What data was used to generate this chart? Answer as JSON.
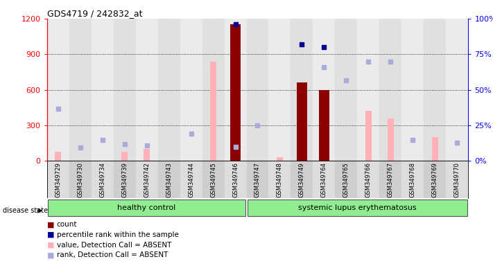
{
  "title": "GDS4719 / 242832_at",
  "samples": [
    "GSM349729",
    "GSM349730",
    "GSM349734",
    "GSM349739",
    "GSM349742",
    "GSM349743",
    "GSM349744",
    "GSM349745",
    "GSM349746",
    "GSM349747",
    "GSM349748",
    "GSM349749",
    "GSM349764",
    "GSM349765",
    "GSM349766",
    "GSM349767",
    "GSM349768",
    "GSM349769",
    "GSM349770"
  ],
  "count_values": [
    null,
    null,
    null,
    null,
    null,
    null,
    null,
    null,
    1150,
    null,
    null,
    660,
    600,
    null,
    null,
    null,
    null,
    null,
    null
  ],
  "percentile_values": [
    null,
    null,
    null,
    null,
    null,
    null,
    null,
    null,
    96,
    null,
    null,
    82,
    80,
    null,
    null,
    null,
    null,
    null,
    null
  ],
  "value_absent": [
    80,
    null,
    null,
    80,
    100,
    null,
    null,
    840,
    null,
    null,
    30,
    null,
    null,
    null,
    420,
    360,
    null,
    200,
    null
  ],
  "rank_absent": [
    440,
    110,
    175,
    140,
    130,
    null,
    230,
    null,
    120,
    300,
    null,
    null,
    790,
    680,
    840,
    840,
    175,
    null,
    155
  ],
  "ylim_left": [
    0,
    1200
  ],
  "ylim_right": [
    0,
    100
  ],
  "yticks_left": [
    0,
    300,
    600,
    900,
    1200
  ],
  "yticks_right": [
    0,
    25,
    50,
    75,
    100
  ],
  "bar_color_count": "#8B0000",
  "bar_color_absent_value": "#ffb0b8",
  "dot_color_percentile": "#000090",
  "dot_color_rank_absent": "#aaaadd",
  "healthy_count": 9,
  "sle_count": 10,
  "group_label_hc": "healthy control",
  "group_label_sle": "systemic lupus erythematosus",
  "legend_items": [
    {
      "color": "#8B0000",
      "label": "count"
    },
    {
      "color": "#000090",
      "label": "percentile rank within the sample"
    },
    {
      "color": "#ffb0b8",
      "label": "value, Detection Call = ABSENT"
    },
    {
      "color": "#aaaadd",
      "label": "rank, Detection Call = ABSENT"
    }
  ]
}
